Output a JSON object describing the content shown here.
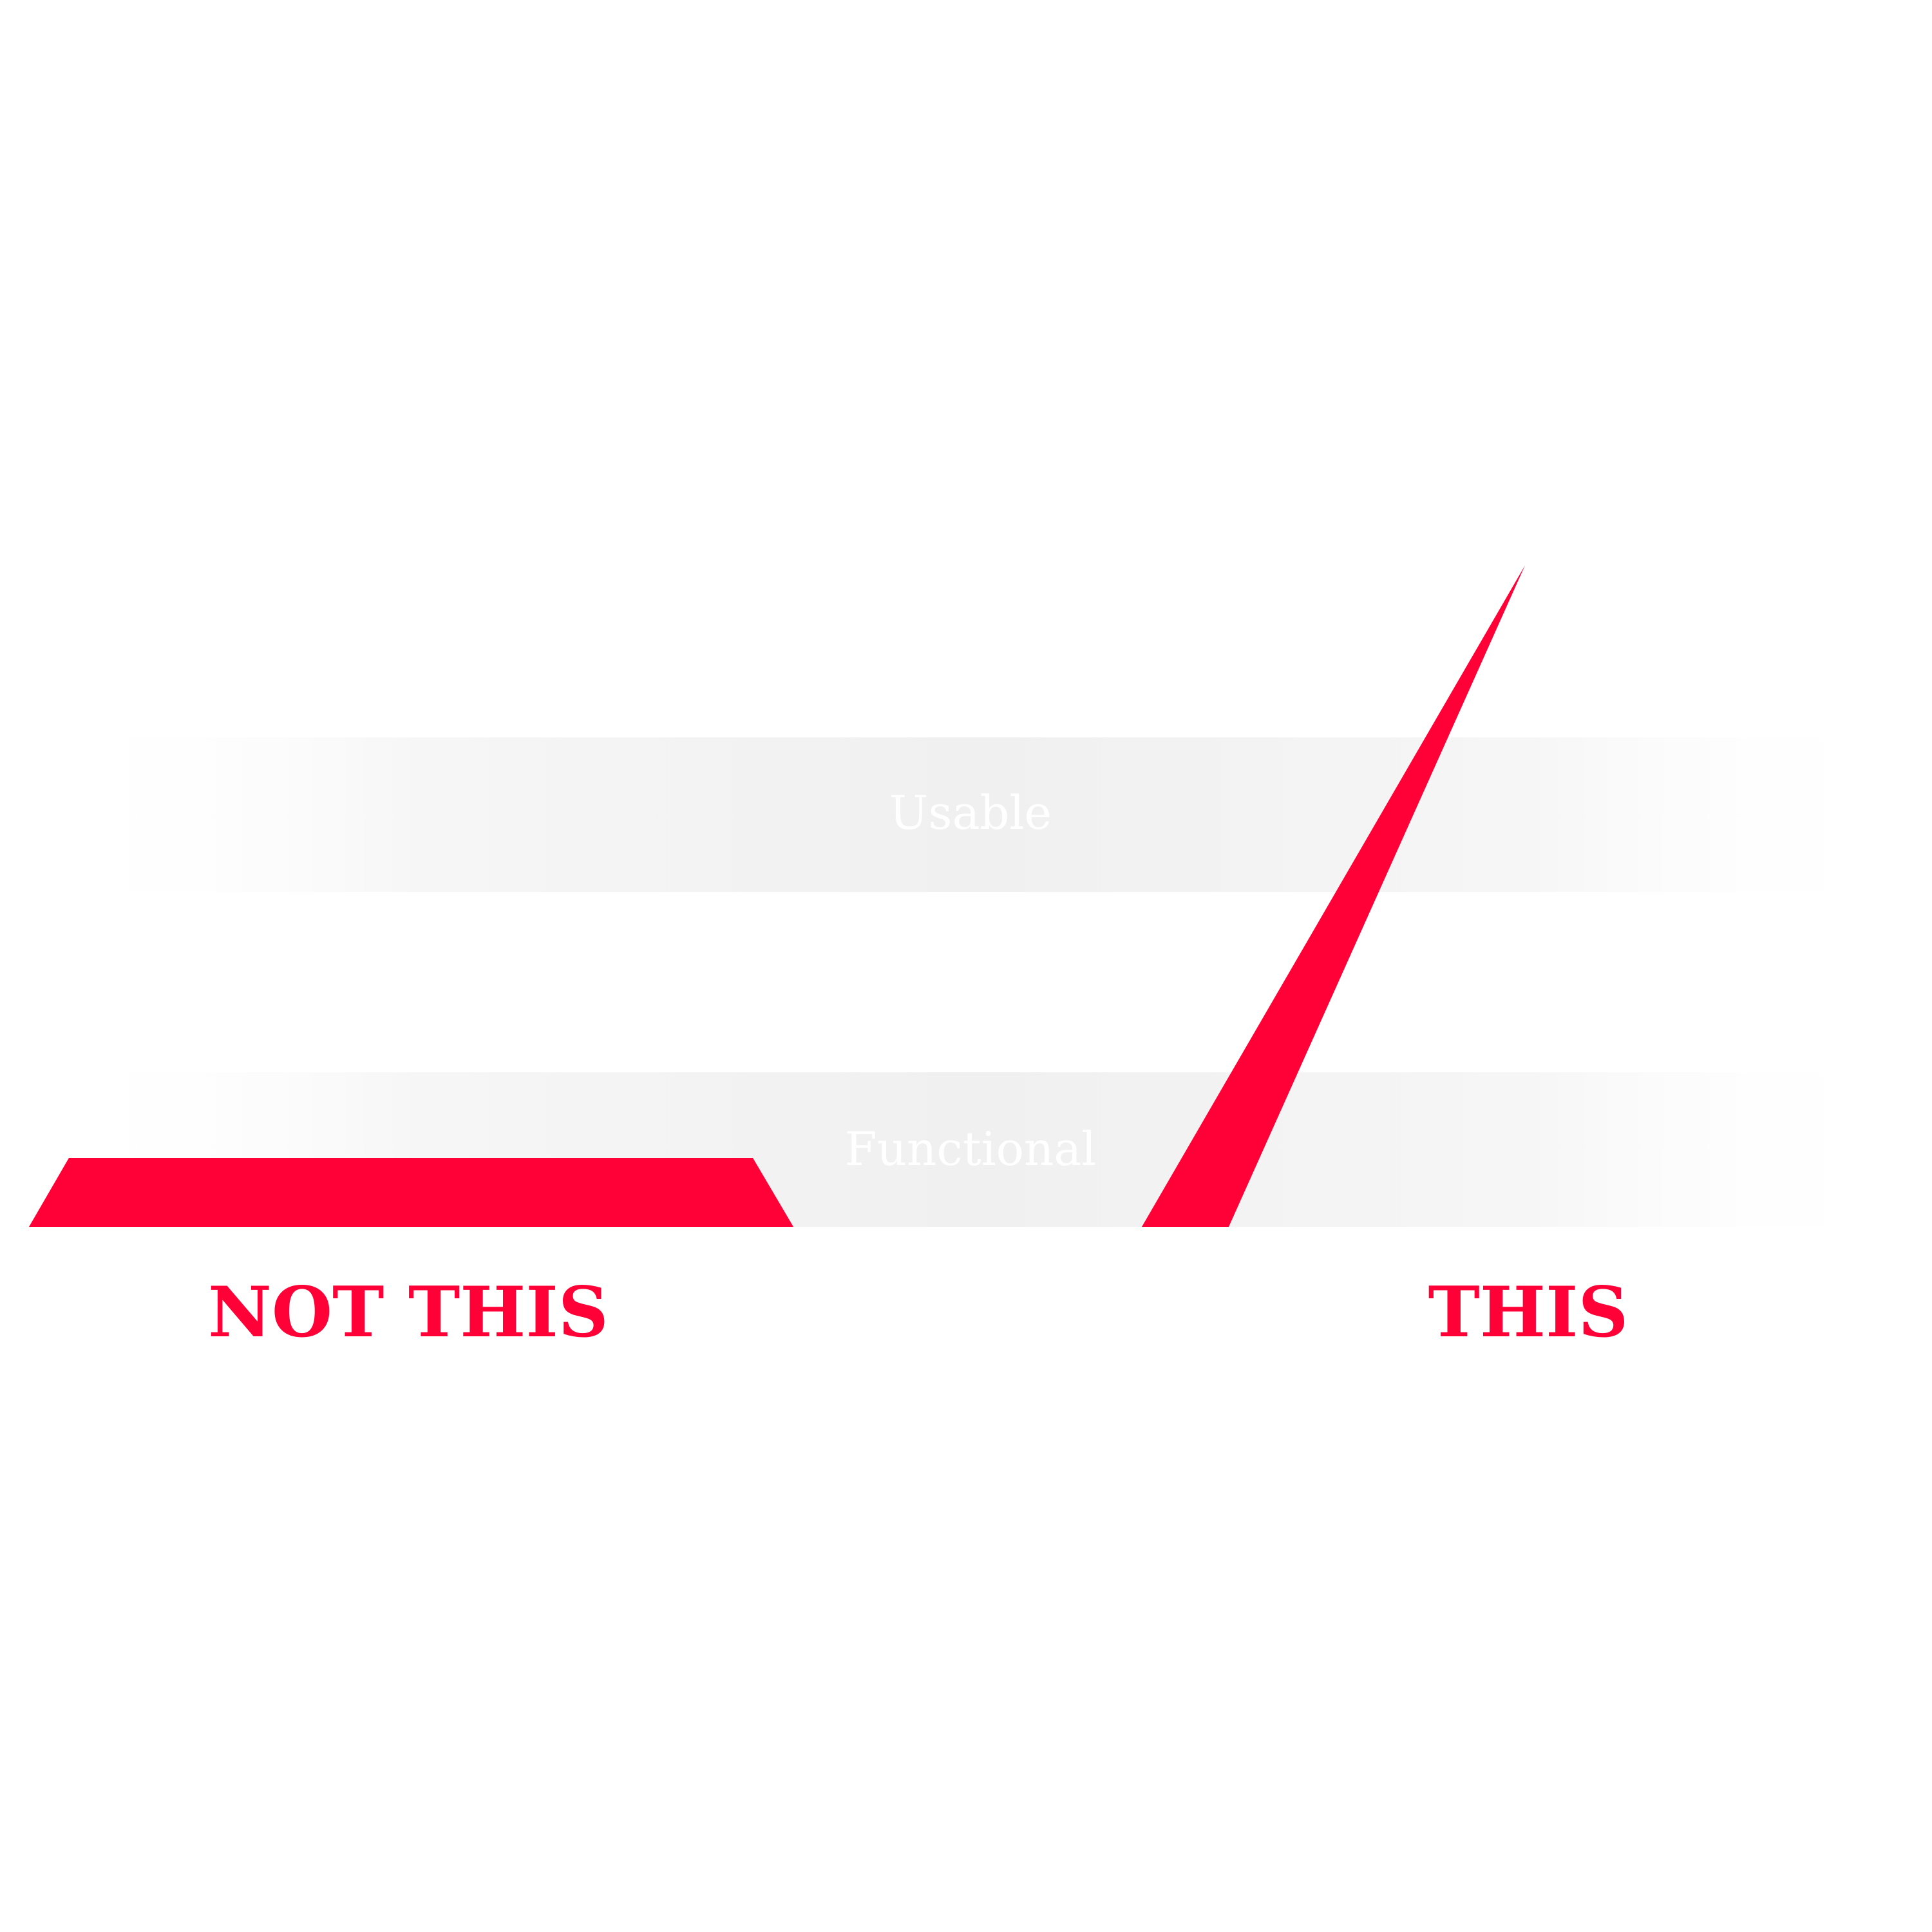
{
  "colors": {
    "accent": "#FF0037",
    "band_fill": "#F2F2F2",
    "band_text": "#FFFFFF",
    "background": "#FFFFFF"
  },
  "bands": [
    {
      "label": "Usable"
    },
    {
      "label": "Functional"
    }
  ],
  "shapes": [
    {
      "name": "not-this-shape",
      "description_name": "wide-flat-trapezoid"
    },
    {
      "name": "this-shape",
      "description_name": "narrow-tall-wedge"
    }
  ],
  "captions": {
    "not_this": "NOT THIS",
    "this": "THIS"
  }
}
